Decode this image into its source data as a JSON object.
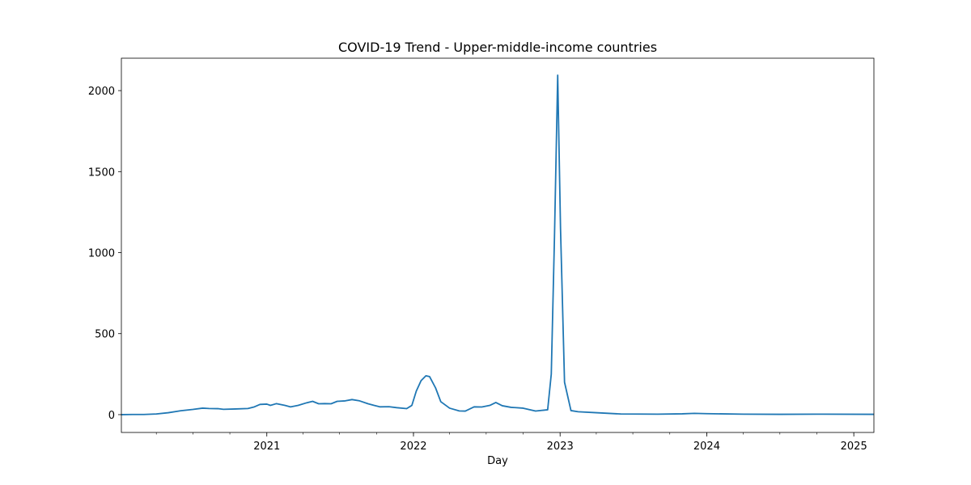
{
  "chart_data": {
    "type": "line",
    "title": "COVID-19 Trend - Upper-middle-income countries",
    "xlabel": "Day",
    "ylabel": "",
    "xlim": [
      "2020-01-05",
      "2025-02-20"
    ],
    "ylim": [
      -110,
      2200
    ],
    "grid": false,
    "legend": "none",
    "x_ticks": [
      {
        "date": "2021-01-01",
        "label": "2021"
      },
      {
        "date": "2022-01-01",
        "label": "2022"
      },
      {
        "date": "2023-01-01",
        "label": "2023"
      },
      {
        "date": "2024-01-01",
        "label": "2024"
      },
      {
        "date": "2025-01-01",
        "label": "2025"
      }
    ],
    "y_ticks": [
      0,
      500,
      1000,
      1500,
      2000
    ],
    "series": [
      {
        "name": "",
        "color": "#1f77b4",
        "points": [
          [
            "2020-01-05",
            0
          ],
          [
            "2020-02-01",
            1
          ],
          [
            "2020-03-01",
            1
          ],
          [
            "2020-04-01",
            4
          ],
          [
            "2020-05-01",
            12
          ],
          [
            "2020-06-01",
            24
          ],
          [
            "2020-07-01",
            32
          ],
          [
            "2020-07-25",
            40
          ],
          [
            "2020-08-10",
            38
          ],
          [
            "2020-09-01",
            37
          ],
          [
            "2020-09-15",
            33
          ],
          [
            "2020-10-15",
            35
          ],
          [
            "2020-11-15",
            38
          ],
          [
            "2020-12-01",
            48
          ],
          [
            "2020-12-15",
            63
          ],
          [
            "2021-01-01",
            65
          ],
          [
            "2021-01-10",
            57
          ],
          [
            "2021-01-25",
            68
          ],
          [
            "2021-02-15",
            57
          ],
          [
            "2021-03-01",
            48
          ],
          [
            "2021-03-20",
            57
          ],
          [
            "2021-04-10",
            73
          ],
          [
            "2021-04-25",
            82
          ],
          [
            "2021-05-10",
            67
          ],
          [
            "2021-05-25",
            68
          ],
          [
            "2021-06-10",
            67
          ],
          [
            "2021-06-25",
            82
          ],
          [
            "2021-07-15",
            85
          ],
          [
            "2021-08-01",
            93
          ],
          [
            "2021-08-20",
            85
          ],
          [
            "2021-09-10",
            67
          ],
          [
            "2021-09-25",
            57
          ],
          [
            "2021-10-10",
            48
          ],
          [
            "2021-11-01",
            49
          ],
          [
            "2021-11-20",
            43
          ],
          [
            "2021-12-15",
            37
          ],
          [
            "2021-12-28",
            57
          ],
          [
            "2022-01-08",
            145
          ],
          [
            "2022-01-20",
            210
          ],
          [
            "2022-02-01",
            240
          ],
          [
            "2022-02-10",
            235
          ],
          [
            "2022-02-25",
            165
          ],
          [
            "2022-03-10",
            80
          ],
          [
            "2022-04-01",
            40
          ],
          [
            "2022-04-25",
            23
          ],
          [
            "2022-05-10",
            22
          ],
          [
            "2022-06-01",
            48
          ],
          [
            "2022-06-20",
            47
          ],
          [
            "2022-07-10",
            57
          ],
          [
            "2022-07-25",
            75
          ],
          [
            "2022-08-10",
            55
          ],
          [
            "2022-09-01",
            45
          ],
          [
            "2022-10-01",
            40
          ],
          [
            "2022-11-01",
            22
          ],
          [
            "2022-12-01",
            30
          ],
          [
            "2022-12-10",
            250
          ],
          [
            "2022-12-18",
            1100
          ],
          [
            "2022-12-26",
            2095
          ],
          [
            "2023-01-02",
            1150
          ],
          [
            "2023-01-12",
            200
          ],
          [
            "2023-01-28",
            25
          ],
          [
            "2023-02-15",
            18
          ],
          [
            "2023-04-01",
            12
          ],
          [
            "2023-06-01",
            4
          ],
          [
            "2023-09-01",
            3
          ],
          [
            "2023-11-01",
            5
          ],
          [
            "2023-12-01",
            8
          ],
          [
            "2024-01-01",
            6
          ],
          [
            "2024-04-01",
            3
          ],
          [
            "2024-07-01",
            2
          ],
          [
            "2024-10-01",
            3
          ],
          [
            "2025-02-20",
            2
          ]
        ]
      }
    ]
  }
}
